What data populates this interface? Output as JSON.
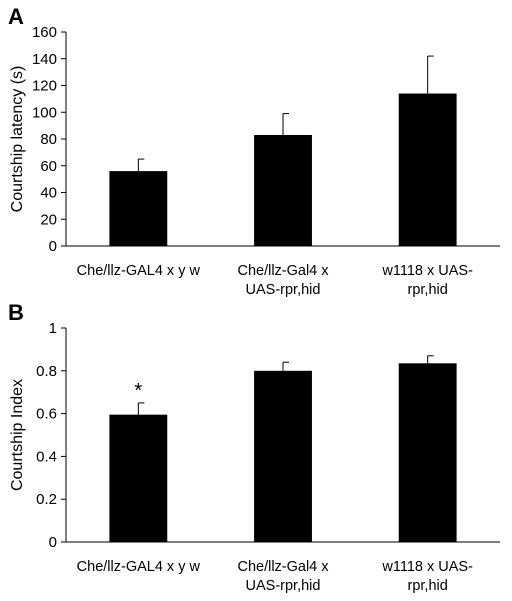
{
  "chart_data": [
    {
      "panel": "A",
      "type": "bar",
      "categories": [
        [
          "Che/llz-GAL4 x y w"
        ],
        [
          "Che/llz-Gal4 x",
          "UAS-rpr,hid"
        ],
        [
          "w1118 x UAS-",
          "rpr,hid"
        ]
      ],
      "values": [
        56,
        83,
        114
      ],
      "errors": [
        9,
        16,
        28
      ],
      "ylabel": "Courtship latency (s)",
      "ylim": [
        0,
        160
      ],
      "yticks": [
        0,
        20,
        40,
        60,
        80,
        100,
        120,
        140,
        160
      ],
      "annotations": [],
      "bar_color": "#000000",
      "grid": false
    },
    {
      "panel": "B",
      "type": "bar",
      "categories": [
        [
          "Che/llz-GAL4 x y w"
        ],
        [
          "Che/llz-Gal4 x",
          "UAS-rpr,hid"
        ],
        [
          "w1118 x UAS-",
          "rpr,hid"
        ]
      ],
      "values": [
        0.595,
        0.8,
        0.835
      ],
      "errors": [
        0.055,
        0.04,
        0.035
      ],
      "ylabel": "Courtship Index",
      "ylim": [
        0,
        1
      ],
      "yticks": [
        0,
        0.2,
        0.4,
        0.6,
        0.8,
        1
      ],
      "ytick_labels": [
        "0",
        "0.2",
        "0.4",
        "0.6",
        "0.8",
        "1"
      ],
      "annotations": [
        {
          "bar": 0,
          "text": "*"
        }
      ],
      "bar_color": "#000000",
      "grid": false
    }
  ]
}
